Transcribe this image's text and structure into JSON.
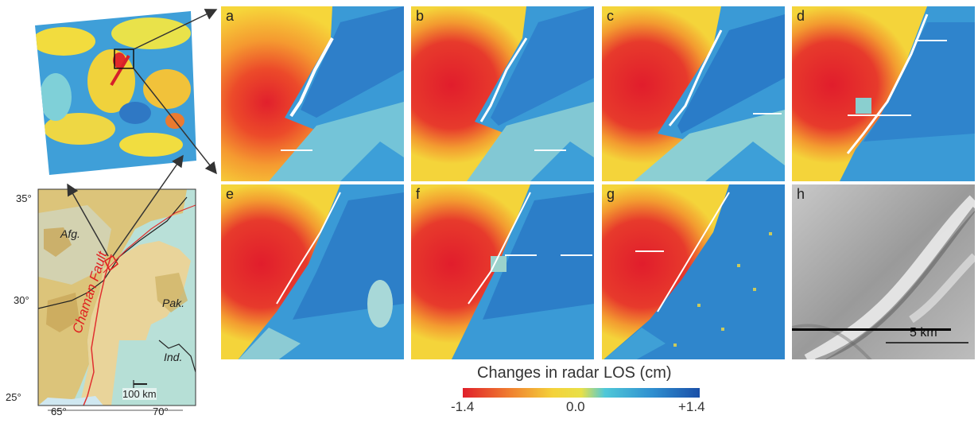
{
  "overview": {
    "latitude_labels": [
      "35°",
      "30°",
      "25°"
    ],
    "longitude_labels": [
      "65°",
      "70°"
    ],
    "region_labels": [
      "Afg.",
      "Pak.",
      "Ind."
    ],
    "fault_label": "Chaman Fault",
    "scale_label": "100 km"
  },
  "panels": [
    {
      "label": "a"
    },
    {
      "label": "b"
    },
    {
      "label": "c"
    },
    {
      "label": "d"
    },
    {
      "label": "e"
    },
    {
      "label": "f"
    },
    {
      "label": "g"
    },
    {
      "label": "h"
    }
  ],
  "hillshade_scale_label": "5 km",
  "colorbar": {
    "title": "Changes in radar LOS (cm)",
    "min_label": "-1.4",
    "mid_label": "0.0",
    "max_label": "+1.4",
    "colors": [
      "#e0202b",
      "#f08030",
      "#f4d23a",
      "#e8e048",
      "#4fc8d8",
      "#2f8fd0",
      "#1a4fa8"
    ]
  }
}
